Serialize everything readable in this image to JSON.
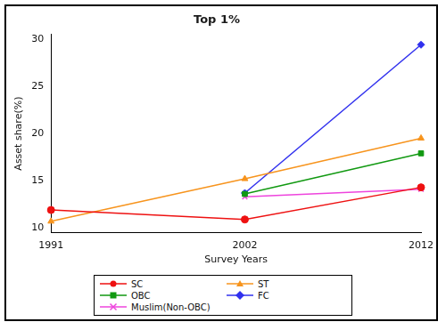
{
  "chart_data": {
    "type": "line",
    "title": "Top 1%",
    "x_label": "Survey Years",
    "y_label": "Asset share(%)",
    "x": [
      1991,
      2002,
      2012
    ],
    "xlim": [
      1991,
      2012
    ],
    "xticks": [
      1991,
      2002,
      2012
    ],
    "ylim": [
      9.5,
      30.5
    ],
    "yticks": [
      10,
      15,
      20,
      25,
      30
    ],
    "grid": false,
    "legend": "bottom",
    "series": [
      {
        "name": "SC",
        "color": "#ee1111",
        "marker": "circle",
        "values": [
          11.9,
          10.9,
          14.3
        ]
      },
      {
        "name": "ST",
        "color": "#f7941d",
        "marker": "triangle",
        "values": [
          10.7,
          15.2,
          19.5
        ]
      },
      {
        "name": "OBC",
        "color": "#119911",
        "marker": "square",
        "values": [
          null,
          13.6,
          17.9
        ]
      },
      {
        "name": "FC",
        "color": "#3030ee",
        "marker": "diamond",
        "values": [
          null,
          13.7,
          29.4
        ]
      },
      {
        "name": "Muslim(Non-OBC)",
        "color": "#ee44dd",
        "marker": "x",
        "values": [
          null,
          13.3,
          14.1
        ]
      }
    ]
  }
}
